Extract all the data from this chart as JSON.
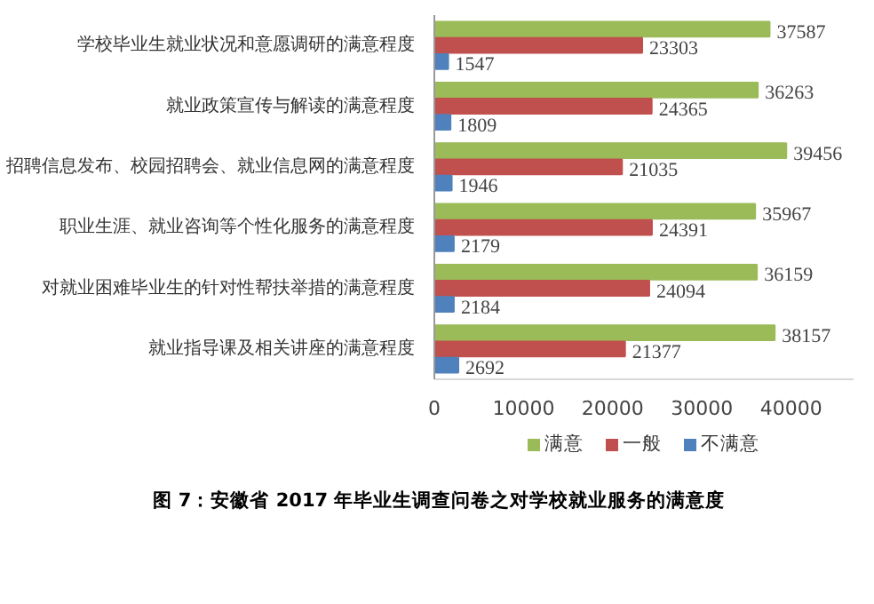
{
  "chart_data": {
    "type": "bar",
    "orientation": "horizontal",
    "categories": [
      "学校毕业生就业状况和意愿调研的满意程度",
      "就业政策宣传与解读的满意程度",
      "招聘信息发布、校园招聘会、就业信息网的满意程度",
      "职业生涯、就业咨询等个性化服务的满意程度",
      "对就业困难毕业生的针对性帮扶举措的满意程度",
      "就业指导课及相关讲座的满意程度"
    ],
    "series": [
      {
        "name": "满意",
        "color": "#9bbb59",
        "values": [
          37587,
          36263,
          39456,
          35967,
          36159,
          38157
        ]
      },
      {
        "name": "一般",
        "color": "#c0504d",
        "values": [
          23303,
          24365,
          21035,
          24391,
          24094,
          21377
        ]
      },
      {
        "name": "不满意",
        "color": "#4f81bd",
        "values": [
          1547,
          1809,
          1946,
          2179,
          2184,
          2692
        ]
      }
    ],
    "xlim": [
      0,
      47000
    ],
    "xticks": [
      0,
      10000,
      20000,
      30000,
      40000
    ],
    "data_labels": true,
    "grid": false,
    "legend": "bottom",
    "annotations": [
      "图 7：安徽省 2017 年毕业生调查问卷之对学校就业服务的满意度"
    ]
  }
}
